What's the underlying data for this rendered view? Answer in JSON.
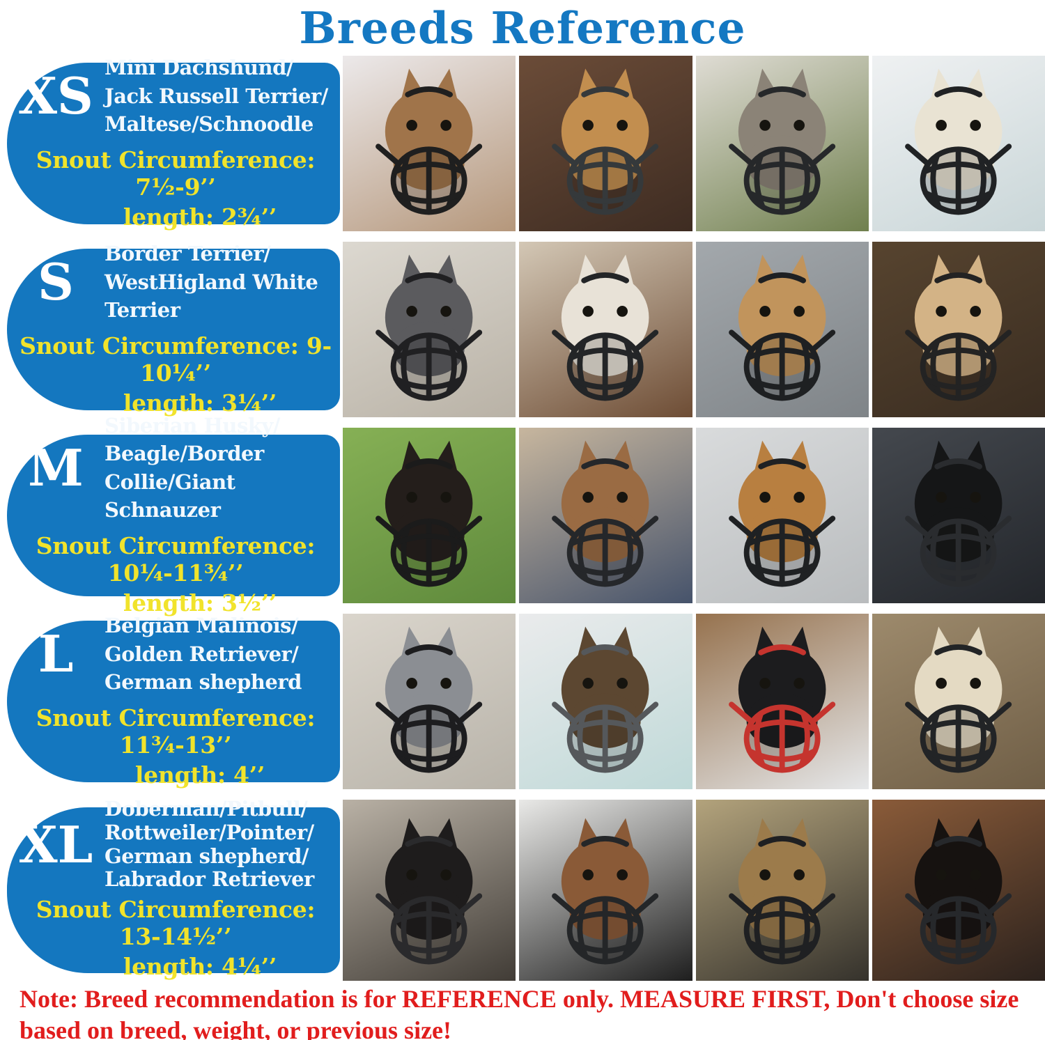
{
  "title": "Breeds Reference",
  "note": "Note: Breed recommendation is for REFERENCE only. MEASURE FIRST, Don't choose size\nbased on breed, weight, or previous size!",
  "colors": {
    "pill_blue": "#1477BF",
    "title_blue": "#1478C2",
    "accent_yellow": "#F1E32B",
    "note_red": "#E11D1D",
    "breed_text_white": "#F2F8FD",
    "size_letter_white": "#FFFFFF"
  },
  "rows": [
    {
      "id": "xs",
      "size": "XS",
      "breeds": "Mini Dachshund/\nJack Russell Terrier/\nMaltese/Schnoodle",
      "snout": "Snout Circumference: 7½-9’’",
      "length": "length: 2¾’’",
      "photos": [
        {
          "desc": "German shepherd mix wearing black basket muzzle in front of white door",
          "bg": [
            "#ECE9EA",
            "#B5977B"
          ],
          "fur": "#A0744A",
          "muzzle": "#1F1F1F"
        },
        {
          "desc": "Fluffy golden collie mix with grey cone and black basket muzzle",
          "bg": [
            "#6B4C38",
            "#3E2C22"
          ],
          "fur": "#C28E4F",
          "muzzle": "#35393B"
        },
        {
          "desc": "Scruffy grey terrier with black basket muzzle near green plants",
          "bg": [
            "#DFDCD4",
            "#70804E"
          ],
          "fur": "#8B8377",
          "muzzle": "#26282A"
        },
        {
          "desc": "White dog wearing black basket muzzle indoors",
          "bg": [
            "#EFF1F2",
            "#C9D6D8"
          ],
          "fur": "#E9E3D3",
          "muzzle": "#202224"
        }
      ]
    },
    {
      "id": "s",
      "size": "S",
      "breeds": "Border Terrier/\nWestHigland White\nTerrier",
      "snout": "Snout Circumference: 9-10¼’’",
      "length": "length: 3¼’’",
      "photos": [
        {
          "desc": "Blue heeler with tongue out wearing black muzzle on white tile floor",
          "bg": [
            "#DCD8D0",
            "#B9B2A6"
          ],
          "fur": "#5B5B5E",
          "muzzle": "#202022"
        },
        {
          "desc": "White and tan Jack Russell wearing black basket muzzle indoors",
          "bg": [
            "#D3C7B5",
            "#6E4D35"
          ],
          "fur": "#E8E2D7",
          "muzzle": "#232527"
        },
        {
          "desc": "Beagle puppy with long ears wearing black basket muzzle",
          "bg": [
            "#A3A8AC",
            "#7F8488"
          ],
          "fur": "#C1945C",
          "muzzle": "#1E2022"
        },
        {
          "desc": "Tan dog wearing black basket muzzle on dark wooden deck",
          "bg": [
            "#57442F",
            "#3A2D21"
          ],
          "fur": "#D3B386",
          "muzzle": "#232323"
        }
      ]
    },
    {
      "id": "m",
      "size": "M",
      "breeds": "Siberian Husky/\nBeagle/Border\nCollie/Giant Schnauzer",
      "snout": "Snout Circumference: 10¼-11¾’’",
      "length": "length: 3½’’",
      "photos": [
        {
          "desc": "Black dog wearing basket muzzle on green grass",
          "bg": [
            "#86B055",
            "#5F8A3C"
          ],
          "fur": "#241E1B",
          "muzzle": "#1B1B1B"
        },
        {
          "desc": "Husky puppy wearing black basket muzzle on patterned rug",
          "bg": [
            "#C7B69E",
            "#46536B"
          ],
          "fur": "#9A6B43",
          "muzzle": "#25272A"
        },
        {
          "desc": "Tan dog wearing black basket muzzle by white corrugated wall",
          "bg": [
            "#D9DBDC",
            "#B9BCBE"
          ],
          "fur": "#B87F40",
          "muzzle": "#1F2123"
        },
        {
          "desc": "Black dog with pointed ears wearing basket muzzle on grey background",
          "bg": [
            "#44484E",
            "#23262B"
          ],
          "fur": "#151617",
          "muzzle": "#2A2C2F"
        }
      ]
    },
    {
      "id": "l",
      "size": "L",
      "breeds": "Belgian Malinois/\nGolden Retriever/\nGerman shepherd",
      "snout": "Snout Circumference: 11¾-13’’",
      "length": "length: 4’’",
      "photos": [
        {
          "desc": "Grey pitbull wearing black basket muzzle on tile floor",
          "bg": [
            "#DAD5CC",
            "#B8B3A9"
          ],
          "fur": "#8B8E93",
          "muzzle": "#1D1D1F"
        },
        {
          "desc": "Shepherd puppy with white cone wearing grey basket muzzle",
          "bg": [
            "#EAEBEC",
            "#BFD9D8"
          ],
          "fur": "#5C4731",
          "muzzle": "#55585B"
        },
        {
          "desc": "Black dog wearing red basket muzzle in kitchen",
          "bg": [
            "#96724E",
            "#E6E8EA"
          ],
          "fur": "#1C1C1E",
          "muzzle": "#C5342E"
        },
        {
          "desc": "Yellow labrador wearing black basket muzzle outdoors on fallen leaves",
          "bg": [
            "#9D8A6C",
            "#6F5E46"
          ],
          "fur": "#E4DAC3",
          "muzzle": "#222426"
        }
      ]
    },
    {
      "id": "xl",
      "size": "XL",
      "breeds": "Doberman/Pitbull/\nRottweiler/Pointer/\nGerman shepherd/\nLabrador Retriever",
      "snout": "Snout Circumference: 13-14½’’",
      "length": "length: 4¼’’",
      "photos": [
        {
          "desc": "Black pitbull wearing basket muzzle held by tattooed hand",
          "bg": [
            "#B9B1A5",
            "#413C36"
          ],
          "fur": "#1E1C1C",
          "muzzle": "#2A2A2C"
        },
        {
          "desc": "Brindle dog wearing black basket muzzle on striped blanket",
          "bg": [
            "#E9E9E7",
            "#1E1E1E"
          ],
          "fur": "#8A5A37",
          "muzzle": "#242628"
        },
        {
          "desc": "Belgian Malinois wearing black basket muzzle outdoors by concrete blocks",
          "bg": [
            "#B3A37C",
            "#35322C"
          ],
          "fur": "#9C7B4B",
          "muzzle": "#1F2022"
        },
        {
          "desc": "Doberman wearing black basket muzzle beside leather couch",
          "bg": [
            "#8A5B39",
            "#2C221D"
          ],
          "fur": "#161210",
          "muzzle": "#26282B"
        }
      ]
    }
  ]
}
